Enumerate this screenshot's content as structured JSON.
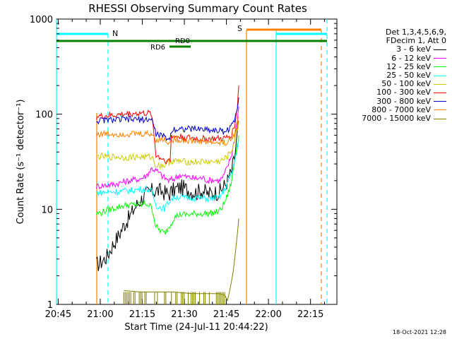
{
  "chart_data": {
    "type": "line",
    "title": "RHESSI Observing Summary Count Rates",
    "xlabel": "Start Time (24-Jul-11 20:44:22)",
    "ylabel": "Count Rate (s⁻¹ detector⁻¹)",
    "y_scale": "log",
    "ylim": [
      1,
      1000
    ],
    "xlim_minutes": [
      0,
      100
    ],
    "x_tick_labels": [
      "20:45",
      "21:00",
      "21:15",
      "21:30",
      "21:45",
      "22:00",
      "22:15"
    ],
    "x_tick_minutes": [
      0.6,
      15.6,
      30.6,
      45.6,
      60.6,
      75.6,
      90.6
    ],
    "y_tick_labels": [
      "1",
      "10",
      "100",
      "1000"
    ],
    "y_tick_values": [
      1,
      10,
      100,
      1000
    ],
    "legend_header": [
      "Det 1,3,4,5,6,9,",
      "FDecim 1, Att 0"
    ],
    "legend_position": "right",
    "series": [
      {
        "name": "3 - 6 keV",
        "color": "#000000",
        "points": [
          [
            14.2,
            2.6
          ],
          [
            16,
            2.8
          ],
          [
            18,
            3.2
          ],
          [
            20,
            4.2
          ],
          [
            22,
            5.2
          ],
          [
            24,
            6.8
          ],
          [
            26,
            8.2
          ],
          [
            28,
            10.5
          ],
          [
            30,
            12.5
          ],
          [
            32,
            14.5
          ],
          [
            34,
            15.5
          ],
          [
            36,
            15.8
          ],
          [
            38,
            15.2
          ],
          [
            40,
            14.5
          ],
          [
            42,
            16
          ],
          [
            44,
            17
          ],
          [
            46,
            16.5
          ],
          [
            48,
            15.5
          ],
          [
            50,
            15
          ],
          [
            52,
            16
          ],
          [
            54,
            14.5
          ],
          [
            56,
            15
          ],
          [
            58,
            15.2
          ],
          [
            59.5,
            17
          ],
          [
            61,
            20
          ],
          [
            62.5,
            25
          ],
          [
            63.5,
            35
          ],
          [
            64.5,
            60
          ],
          [
            65,
            85
          ]
        ]
      },
      {
        "name": "6 - 12 keV",
        "color": "#ff00ff",
        "points": [
          [
            14.2,
            17.5
          ],
          [
            16,
            17.8
          ],
          [
            18,
            18
          ],
          [
            20,
            18.2
          ],
          [
            22,
            18.8
          ],
          [
            24,
            19.5
          ],
          [
            26,
            20
          ],
          [
            28,
            20.5
          ],
          [
            30,
            21
          ],
          [
            32,
            22.5
          ],
          [
            34,
            27
          ],
          [
            36,
            25
          ],
          [
            38,
            22
          ],
          [
            40,
            20
          ],
          [
            42,
            21
          ],
          [
            44,
            23
          ],
          [
            46,
            22
          ],
          [
            48,
            21.5
          ],
          [
            50,
            21
          ],
          [
            52,
            21.5
          ],
          [
            54,
            20
          ],
          [
            56,
            20.5
          ],
          [
            58,
            20
          ],
          [
            59.5,
            22
          ],
          [
            61,
            28
          ],
          [
            62.5,
            38
          ],
          [
            63.5,
            55
          ],
          [
            64.5,
            90
          ],
          [
            65,
            120
          ]
        ]
      },
      {
        "name": "12 - 25 keV",
        "color": "#00ff00",
        "points": [
          [
            14.2,
            9
          ],
          [
            16,
            9.2
          ],
          [
            18,
            9.8
          ],
          [
            20,
            10.2
          ],
          [
            22,
            10.5
          ],
          [
            24,
            11
          ],
          [
            26,
            11
          ],
          [
            28,
            11.2
          ],
          [
            30,
            11.2
          ],
          [
            32,
            11.5
          ],
          [
            34,
            10.5
          ],
          [
            35.5,
            6.5
          ],
          [
            37,
            6
          ],
          [
            38.5,
            5.6
          ],
          [
            40.5,
            6.8
          ],
          [
            42,
            8.2
          ],
          [
            44,
            8.8
          ],
          [
            46,
            8.8
          ],
          [
            48,
            8.8
          ],
          [
            50,
            9
          ],
          [
            52,
            9
          ],
          [
            54,
            9
          ],
          [
            56,
            9.2
          ],
          [
            58,
            9.5
          ],
          [
            59.5,
            11
          ],
          [
            61,
            14
          ],
          [
            62.5,
            20
          ],
          [
            63.5,
            32
          ],
          [
            64.5,
            50
          ],
          [
            65,
            60
          ]
        ]
      },
      {
        "name": "25 - 50 keV",
        "color": "#00ffff",
        "points": [
          [
            14.2,
            15
          ],
          [
            16,
            15
          ],
          [
            18,
            15.2
          ],
          [
            20,
            15.3
          ],
          [
            22,
            15.4
          ],
          [
            24,
            15.6
          ],
          [
            26,
            15.8
          ],
          [
            28,
            16
          ],
          [
            30,
            16.2
          ],
          [
            32,
            16.5
          ],
          [
            34,
            15.5
          ],
          [
            35.5,
            11
          ],
          [
            37,
            10.5
          ],
          [
            38.5,
            10.2
          ],
          [
            40.5,
            12.5
          ],
          [
            42,
            13.5
          ],
          [
            44,
            13.5
          ],
          [
            46,
            13.2
          ],
          [
            48,
            13.2
          ],
          [
            50,
            13.2
          ],
          [
            52,
            13
          ],
          [
            54,
            13
          ],
          [
            56,
            13
          ],
          [
            58,
            13.2
          ],
          [
            59.5,
            15
          ],
          [
            61,
            19
          ],
          [
            62.5,
            24
          ],
          [
            63.5,
            32
          ],
          [
            64.5,
            45
          ],
          [
            65,
            55
          ]
        ]
      },
      {
        "name": "50 - 100 keV",
        "color": "#cccc00",
        "points": [
          [
            14.2,
            36
          ],
          [
            16,
            36
          ],
          [
            18,
            35.5
          ],
          [
            20,
            35.5
          ],
          [
            22,
            35.5
          ],
          [
            24,
            35
          ],
          [
            26,
            35.2
          ],
          [
            28,
            35.5
          ],
          [
            30,
            35.5
          ],
          [
            32,
            35.5
          ],
          [
            34,
            35.5
          ],
          [
            35.5,
            29
          ],
          [
            37,
            29
          ],
          [
            38.5,
            29
          ],
          [
            40.5,
            32
          ],
          [
            42,
            32
          ],
          [
            44,
            32
          ],
          [
            46,
            31.5
          ],
          [
            48,
            31.5
          ],
          [
            50,
            31.5
          ],
          [
            52,
            31.5
          ],
          [
            54,
            31.5
          ],
          [
            56,
            31.5
          ],
          [
            58,
            32
          ],
          [
            59.5,
            33
          ],
          [
            61,
            36
          ],
          [
            62.5,
            42
          ],
          [
            63.5,
            52
          ],
          [
            64.5,
            70
          ],
          [
            65,
            85
          ]
        ]
      },
      {
        "name": "100 - 300 keV",
        "color": "#ff0000",
        "points": [
          [
            14.2,
            94
          ],
          [
            16,
            95
          ],
          [
            18,
            96
          ],
          [
            20,
            97
          ],
          [
            22,
            98
          ],
          [
            24,
            100
          ],
          [
            26,
            101
          ],
          [
            28,
            102
          ],
          [
            30,
            102
          ],
          [
            32,
            102
          ],
          [
            34,
            101
          ],
          [
            35.5,
            37
          ],
          [
            37,
            35
          ],
          [
            38.5,
            33
          ],
          [
            40.5,
            32
          ],
          [
            41,
            60
          ],
          [
            42,
            58
          ],
          [
            44,
            58
          ],
          [
            46,
            57
          ],
          [
            48,
            56
          ],
          [
            50,
            55
          ],
          [
            52,
            55
          ],
          [
            54,
            55
          ],
          [
            56,
            55
          ],
          [
            58,
            55
          ],
          [
            59.5,
            55
          ],
          [
            61,
            57
          ],
          [
            62.5,
            62
          ],
          [
            63.5,
            75
          ],
          [
            64.5,
            120
          ],
          [
            65,
            200
          ]
        ]
      },
      {
        "name": "300 - 800 keV",
        "color": "#0000cc",
        "points": [
          [
            14.2,
            85
          ],
          [
            16,
            86
          ],
          [
            18,
            87
          ],
          [
            20,
            87
          ],
          [
            22,
            87
          ],
          [
            24,
            88
          ],
          [
            26,
            88
          ],
          [
            28,
            88
          ],
          [
            30,
            88
          ],
          [
            32,
            88
          ],
          [
            34,
            88
          ],
          [
            35.5,
            62
          ],
          [
            37,
            60
          ],
          [
            38.5,
            58
          ],
          [
            40.5,
            54
          ],
          [
            41,
            68
          ],
          [
            42,
            70
          ],
          [
            44,
            70
          ],
          [
            46,
            70
          ],
          [
            48,
            70
          ],
          [
            50,
            70
          ],
          [
            52,
            70
          ],
          [
            54,
            69
          ],
          [
            56,
            68
          ],
          [
            58,
            67
          ],
          [
            59.5,
            66
          ],
          [
            61,
            68
          ],
          [
            62.5,
            75
          ],
          [
            63.5,
            88
          ],
          [
            64.5,
            120
          ],
          [
            65,
            150
          ]
        ]
      },
      {
        "name": "800 - 7000 keV",
        "color": "#ff8000",
        "points": [
          [
            14.2,
            62
          ],
          [
            16,
            62
          ],
          [
            18,
            62
          ],
          [
            20,
            62
          ],
          [
            22,
            62
          ],
          [
            24,
            62
          ],
          [
            26,
            62
          ],
          [
            28,
            62
          ],
          [
            30,
            62
          ],
          [
            32,
            62
          ],
          [
            34,
            62
          ],
          [
            35.5,
            54
          ],
          [
            37,
            54
          ],
          [
            38.5,
            54
          ],
          [
            40.5,
            50
          ],
          [
            41,
            54
          ],
          [
            42,
            54
          ],
          [
            44,
            54
          ],
          [
            46,
            53
          ],
          [
            48,
            52
          ],
          [
            50,
            52
          ],
          [
            52,
            52
          ],
          [
            54,
            51
          ],
          [
            56,
            50
          ],
          [
            58,
            50
          ],
          [
            59.5,
            50
          ],
          [
            61,
            51
          ],
          [
            62.5,
            55
          ],
          [
            63.5,
            62
          ],
          [
            64.5,
            80
          ],
          [
            65,
            95
          ]
        ]
      },
      {
        "name": "7000 - 15000 keV",
        "color": "#808000",
        "points": [
          [
            24,
            1.4
          ],
          [
            30,
            1.35
          ],
          [
            36,
            1.35
          ],
          [
            42,
            1.35
          ],
          [
            48,
            1.3
          ],
          [
            54,
            1.3
          ],
          [
            58,
            1.3
          ],
          [
            60,
            1.25
          ],
          [
            61,
            1.1
          ],
          [
            62,
            1.5
          ],
          [
            63,
            2.2
          ],
          [
            63.8,
            3.5
          ],
          [
            64.5,
            5.5
          ],
          [
            65,
            8
          ]
        ]
      }
    ],
    "annotations": {
      "flags": [
        {
          "label": "N",
          "color": "#00ffff"
        },
        {
          "label": "S",
          "color": "#ff8000"
        },
        {
          "label": "RD0",
          "color": "#008000"
        },
        {
          "label": "RD6",
          "color": "#008000"
        }
      ]
    }
  },
  "footer_timestamp": "18-Oct-2021 12:28"
}
